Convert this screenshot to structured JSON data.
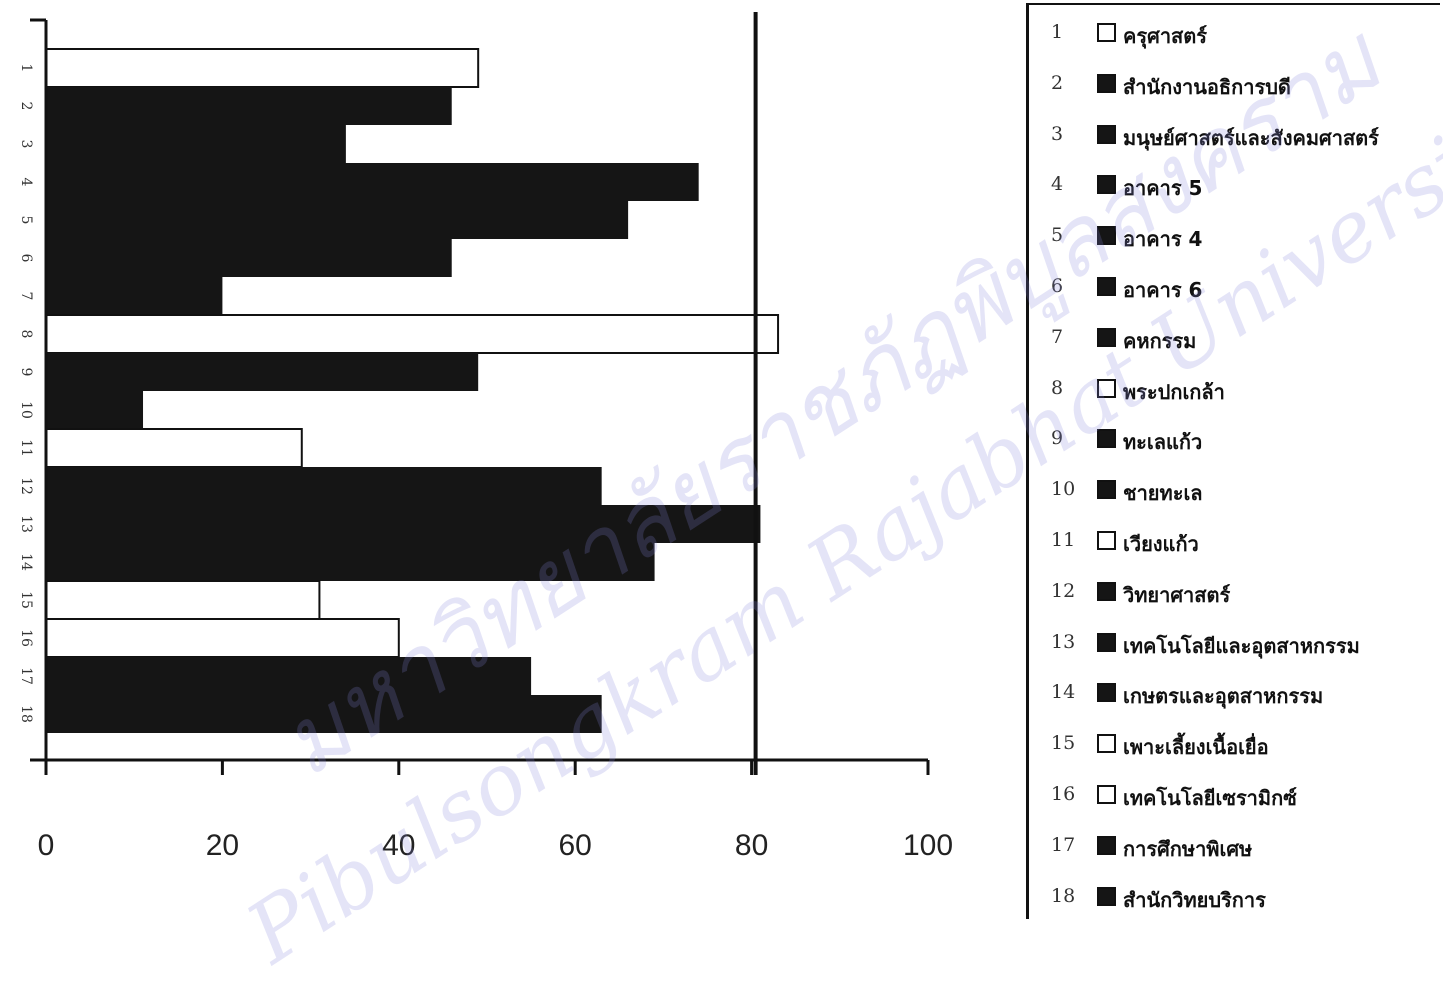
{
  "chart_data": {
    "type": "bar",
    "orientation": "horizontal",
    "categories": [
      "1",
      "2",
      "3",
      "4",
      "5",
      "6",
      "7",
      "8",
      "9",
      "10",
      "11",
      "12",
      "13",
      "14",
      "15",
      "16",
      "17",
      "18"
    ],
    "values": [
      49,
      46,
      34,
      74,
      66,
      46,
      20,
      83,
      49,
      11,
      29,
      63,
      81,
      69,
      31,
      40,
      55,
      63
    ],
    "fills": [
      "hollow",
      "solid",
      "solid",
      "solid",
      "solid",
      "solid",
      "solid",
      "hollow",
      "solid",
      "solid",
      "hollow",
      "solid",
      "solid",
      "solid",
      "hollow",
      "hollow",
      "solid",
      "solid"
    ],
    "xlim": [
      0,
      100
    ],
    "xticks": [
      "0",
      "20",
      "40",
      "60",
      "80",
      "100"
    ],
    "reference_line": 80,
    "legend_placement": "right",
    "grid": false,
    "title": "",
    "xlabel": "",
    "ylabel": ""
  },
  "legend": [
    {
      "num": "1",
      "label": "ครุศาสตร์",
      "fill": "hollow"
    },
    {
      "num": "2",
      "label": "สำนักงานอธิการบดี",
      "fill": "solid"
    },
    {
      "num": "3",
      "label": "มนุษย์ศาสตร์และสังคมศาสตร์",
      "fill": "solid"
    },
    {
      "num": "4",
      "label": "อาคาร 5",
      "fill": "solid"
    },
    {
      "num": "5",
      "label": "อาคาร 4",
      "fill": "solid"
    },
    {
      "num": "6",
      "label": "อาคาร 6",
      "fill": "solid"
    },
    {
      "num": "7",
      "label": "คหกรรม",
      "fill": "solid"
    },
    {
      "num": "8",
      "label": "พระปกเกล้า",
      "fill": "hollow"
    },
    {
      "num": "9",
      "label": "ทะเลแก้ว",
      "fill": "solid"
    },
    {
      "num": "10",
      "label": "ชายทะเล",
      "fill": "solid"
    },
    {
      "num": "11",
      "label": "เวียงแก้ว",
      "fill": "hollow"
    },
    {
      "num": "12",
      "label": "วิทยาศาสตร์",
      "fill": "solid"
    },
    {
      "num": "13",
      "label": "เทคโนโลยีและอุตสาหกรรม",
      "fill": "solid"
    },
    {
      "num": "14",
      "label": "เกษตรและอุตสาหกรรม",
      "fill": "solid"
    },
    {
      "num": "15",
      "label": "เพาะเลี้ยงเนื้อเยื่อ",
      "fill": "hollow"
    },
    {
      "num": "16",
      "label": "เทคโนโลยีเซรามิกซ์",
      "fill": "hollow"
    },
    {
      "num": "17",
      "label": "การศึกษาพิเศษ",
      "fill": "solid"
    },
    {
      "num": "18",
      "label": "สำนักวิทยบริการ",
      "fill": "solid"
    }
  ],
  "watermark": {
    "line1": "มหาวิทยาลัยราชภัฏพิบูลสงคราม",
    "line2": "Pibulsongkram Rajabhat University"
  },
  "colors": {
    "solid": "#151515",
    "hollow": "#ffffff",
    "axis": "#111111"
  }
}
